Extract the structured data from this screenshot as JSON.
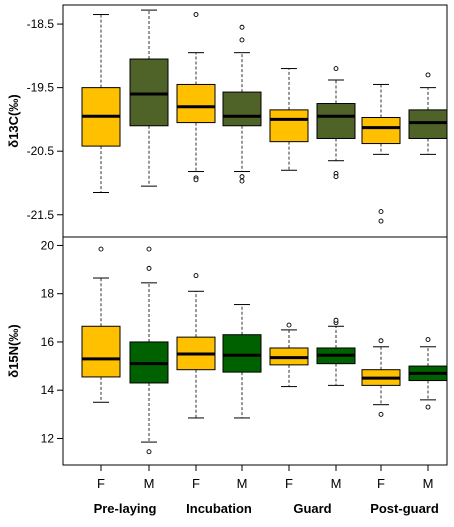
{
  "colors": {
    "female": "#FFC000",
    "male_top": "#4F6228",
    "male_bottom": "#006100",
    "frame": "#000000",
    "whisker": "#333333"
  },
  "x_labels": {
    "sex": [
      "F",
      "M",
      "F",
      "M",
      "F",
      "M",
      "F",
      "M"
    ],
    "stages": [
      "Pre-laying",
      "Incubation",
      "Guard",
      "Post-guard"
    ]
  },
  "chart_data": [
    {
      "type": "box",
      "ylabel": "δ13C(‰)",
      "ylim": [
        -21.85,
        -18.2
      ],
      "ticks": [
        -18.5,
        -19.5,
        -20.5,
        -21.5
      ],
      "tick_labels": [
        "-18.5",
        "-19.5",
        "-20.5",
        "-21.5"
      ],
      "grid": false,
      "boxes": [
        {
          "stage": "Pre-laying",
          "sex": "F",
          "whisker_low": -21.15,
          "q1": -20.42,
          "median": -19.95,
          "q3": -19.5,
          "whisker_high": -18.35,
          "outliers": []
        },
        {
          "stage": "Pre-laying",
          "sex": "M",
          "whisker_low": -21.05,
          "q1": -20.1,
          "median": -19.6,
          "q3": -19.05,
          "whisker_high": -18.28,
          "outliers": []
        },
        {
          "stage": "Incubation",
          "sex": "F",
          "whisker_low": -20.82,
          "q1": -20.05,
          "median": -19.8,
          "q3": -19.45,
          "whisker_high": -18.95,
          "outliers": [
            -18.35,
            -20.92,
            -20.95
          ]
        },
        {
          "stage": "Incubation",
          "sex": "M",
          "whisker_low": -20.82,
          "q1": -20.1,
          "median": -19.95,
          "q3": -19.57,
          "whisker_high": -18.95,
          "outliers": [
            -18.55,
            -18.75,
            -20.9,
            -20.97
          ]
        },
        {
          "stage": "Guard",
          "sex": "F",
          "whisker_low": -20.8,
          "q1": -20.35,
          "median": -20.0,
          "q3": -19.85,
          "whisker_high": -19.2,
          "outliers": []
        },
        {
          "stage": "Guard",
          "sex": "M",
          "whisker_low": -20.65,
          "q1": -20.3,
          "median": -19.95,
          "q3": -19.75,
          "whisker_high": -19.38,
          "outliers": [
            -19.2,
            -20.85,
            -20.9
          ]
        },
        {
          "stage": "Post-guard",
          "sex": "F",
          "whisker_low": -20.55,
          "q1": -20.38,
          "median": -20.13,
          "q3": -19.97,
          "whisker_high": -19.45,
          "outliers": [
            -21.45,
            -21.6
          ]
        },
        {
          "stage": "Post-guard",
          "sex": "M",
          "whisker_low": -20.55,
          "q1": -20.3,
          "median": -20.05,
          "q3": -19.85,
          "whisker_high": -19.5,
          "outliers": [
            -19.3
          ]
        }
      ]
    },
    {
      "type": "box",
      "ylabel": "δ15N(‰)",
      "ylim": [
        10.9,
        20.35
      ],
      "ticks": [
        12,
        14,
        16,
        18,
        20
      ],
      "tick_labels": [
        "12",
        "14",
        "16",
        "18",
        "20"
      ],
      "grid": false,
      "boxes": [
        {
          "stage": "Pre-laying",
          "sex": "F",
          "whisker_low": 13.5,
          "q1": 14.55,
          "median": 15.3,
          "q3": 16.65,
          "whisker_high": 18.65,
          "outliers": [
            19.85
          ]
        },
        {
          "stage": "Pre-laying",
          "sex": "M",
          "whisker_low": 11.85,
          "q1": 14.3,
          "median": 15.1,
          "q3": 16.0,
          "whisker_high": 18.45,
          "outliers": [
            11.45,
            19.05,
            19.85
          ]
        },
        {
          "stage": "Incubation",
          "sex": "F",
          "whisker_low": 12.85,
          "q1": 14.85,
          "median": 15.5,
          "q3": 16.2,
          "whisker_high": 18.1,
          "outliers": [
            18.75
          ]
        },
        {
          "stage": "Incubation",
          "sex": "M",
          "whisker_low": 12.85,
          "q1": 14.75,
          "median": 15.45,
          "q3": 16.3,
          "whisker_high": 17.55,
          "outliers": []
        },
        {
          "stage": "Guard",
          "sex": "F",
          "whisker_low": 14.15,
          "q1": 15.05,
          "median": 15.35,
          "q3": 15.75,
          "whisker_high": 16.5,
          "outliers": [
            16.7
          ]
        },
        {
          "stage": "Guard",
          "sex": "M",
          "whisker_low": 14.2,
          "q1": 15.1,
          "median": 15.45,
          "q3": 15.75,
          "whisker_high": 16.65,
          "outliers": [
            16.8,
            16.9
          ]
        },
        {
          "stage": "Post-guard",
          "sex": "F",
          "whisker_low": 13.4,
          "q1": 14.2,
          "median": 14.5,
          "q3": 14.85,
          "whisker_high": 15.8,
          "outliers": [
            13.0,
            16.05
          ]
        },
        {
          "stage": "Post-guard",
          "sex": "M",
          "whisker_low": 13.6,
          "q1": 14.4,
          "median": 14.7,
          "q3": 15.0,
          "whisker_high": 15.8,
          "outliers": [
            13.3,
            16.1
          ]
        }
      ]
    }
  ]
}
